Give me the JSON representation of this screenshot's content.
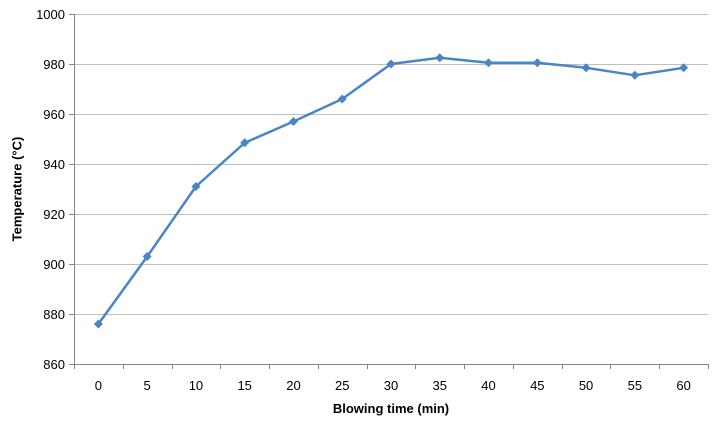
{
  "chart_data": {
    "type": "line",
    "x": [
      0,
      5,
      10,
      15,
      20,
      25,
      30,
      35,
      40,
      45,
      50,
      55,
      60
    ],
    "x_tick_labels": [
      "0",
      "5",
      "10",
      "15",
      "20",
      "25",
      "30",
      "35",
      "40",
      "45",
      "50",
      "55",
      "60"
    ],
    "series": [
      {
        "values": [
          876,
          903,
          931,
          948.5,
          957,
          966,
          980,
          982.5,
          980.5,
          980.5,
          978.5,
          975.5,
          978.5
        ],
        "color": "#4a86c4",
        "marker": "diamond"
      }
    ],
    "xlabel": "Blowing time (min)",
    "ylabel": "Temperature (°C)",
    "ylim": [
      860,
      1000
    ],
    "y_ticks": [
      860,
      880,
      900,
      920,
      940,
      960,
      980,
      1000
    ],
    "y_tick_labels": [
      "860",
      "880",
      "900",
      "920",
      "940",
      "960",
      "980",
      "1000"
    ],
    "grid": "horizontal",
    "legend": "none",
    "gridline_color": "#bfbfbf",
    "axis_color": "#868686"
  }
}
